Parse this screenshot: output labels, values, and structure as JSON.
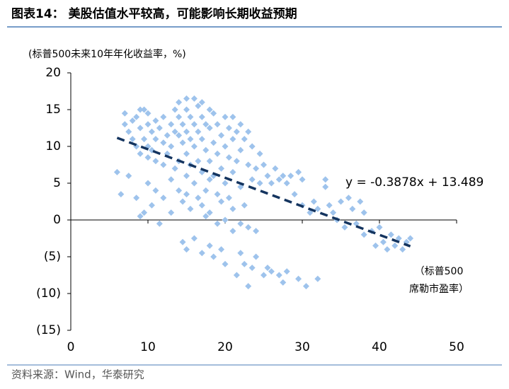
{
  "chart_data": {
    "type": "scatter",
    "title": "图表14：  美股估值水平较高，可能影响长期收益预期",
    "y_label": "(标普500未来10年年化收益率，%)",
    "x_label": [
      "（标普500",
      "席勒市盈率）"
    ],
    "source": "资料来源：Wind，华泰研究",
    "annotation": "y = -0.3878x + 13.489",
    "trendline": {
      "slope": -0.3878,
      "intercept": 13.489,
      "x_range": [
        6,
        44
      ],
      "color": "#14345f"
    },
    "color": "#9ec3ec",
    "xlim": [
      0,
      50
    ],
    "ylim": [
      -15,
      20
    ],
    "xticks": [
      0,
      10,
      20,
      30,
      40,
      50
    ],
    "yticks": [
      20,
      15,
      10,
      5,
      0,
      {
        "value": -5,
        "label": "(5)"
      },
      {
        "value": -10,
        "label": "(10)"
      },
      {
        "value": -15,
        "label": "(15)"
      }
    ],
    "x": [
      6,
      6.5,
      7,
      7,
      7.5,
      7.5,
      8,
      8,
      8.5,
      8.5,
      8.5,
      9,
      9,
      9,
      9,
      9.5,
      9.5,
      9.5,
      10,
      10,
      10,
      10,
      10,
      10.5,
      10.5,
      10.5,
      11,
      11,
      11,
      11,
      11.5,
      11.5,
      12,
      12,
      12,
      12,
      12.5,
      12.5,
      13,
      13,
      13,
      13,
      13.5,
      13.5,
      13.5,
      14,
      14,
      14,
      14,
      14,
      14.5,
      14.5,
      14.5,
      14.5,
      15,
      15,
      15,
      15,
      15,
      15,
      15,
      15.5,
      15.5,
      15.5,
      15.5,
      16,
      16,
      16,
      16,
      16,
      16.5,
      16.5,
      16.5,
      16.5,
      17,
      17,
      17,
      17,
      17,
      17,
      17.5,
      17.5,
      17.5,
      17.5,
      18,
      18,
      18,
      18,
      18,
      18,
      18.5,
      18.5,
      18.5,
      18.5,
      19,
      19,
      19,
      19,
      19.5,
      19.5,
      19.5,
      19.5,
      20,
      20,
      20,
      20,
      20,
      20.5,
      20.5,
      20.5,
      21,
      21,
      21,
      21,
      21,
      21.5,
      21.5,
      21.5,
      22,
      22,
      22,
      22,
      22,
      22.5,
      22.5,
      22.5,
      23,
      23,
      23,
      23,
      23.5,
      23.5,
      23.5,
      24,
      24,
      24,
      24.5,
      24.5,
      25,
      25,
      25.5,
      25.5,
      26,
      26,
      26.5,
      27,
      27,
      27.5,
      27.5,
      28,
      28,
      28.5,
      29,
      29.5,
      29.5,
      30,
      30,
      30.5,
      31,
      31.5,
      32,
      32,
      33,
      33,
      33.5,
      34,
      34.5,
      35,
      35.5,
      36,
      36.5,
      37,
      37.5,
      38,
      38,
      39,
      39.5,
      40,
      40.5,
      41,
      41.5,
      42,
      42.5,
      43,
      43.5,
      44
    ],
    "y": [
      6.5,
      3.5,
      14.5,
      13,
      12,
      6,
      13.5,
      11,
      14,
      10,
      3,
      15,
      12.5,
      9,
      0.5,
      15,
      11,
      1,
      14.5,
      13,
      10,
      8.5,
      5,
      12,
      9.5,
      2,
      13.5,
      11,
      8,
      4,
      12.5,
      -0.5,
      14,
      10.5,
      7.5,
      3,
      11.5,
      9,
      13,
      10,
      5.5,
      1,
      15,
      12,
      7,
      16,
      14,
      11.5,
      8,
      4,
      13,
      10.5,
      2.5,
      -3,
      16.5,
      15,
      12,
      9,
      6,
      3.5,
      -4,
      14,
      11,
      7.5,
      1.5,
      16.5,
      13,
      10,
      5,
      -2.5,
      15.5,
      12,
      8,
      3,
      16,
      14,
      11,
      6.5,
      2,
      -4.5,
      13,
      9.5,
      4,
      0.5,
      15,
      12.5,
      8,
      5.5,
      1,
      -3.5,
      14.5,
      10.5,
      6,
      -5,
      13,
      9,
      3.5,
      -0.5,
      11.5,
      7,
      2.5,
      -4,
      14,
      10,
      5,
      0,
      -6,
      12.5,
      8.5,
      3,
      14,
      11,
      6.5,
      1.5,
      -1.5,
      12,
      8,
      -7.5,
      13,
      9.5,
      4.5,
      -0.5,
      -4.5,
      11,
      2,
      -6,
      12,
      7.5,
      -1,
      -9,
      10,
      5.5,
      -6.5,
      7,
      -1.5,
      -5,
      9,
      5,
      7.5,
      -7.5,
      6,
      -6.5,
      5,
      -7,
      7,
      5.5,
      -7.5,
      6,
      -8.5,
      5,
      -7,
      6,
      3.5,
      6.5,
      -8,
      5.5,
      2,
      -9,
      1,
      2.5,
      1.5,
      -8,
      4.5,
      5.5,
      2,
      1,
      0,
      2.5,
      -1,
      3,
      1.5,
      -0.5,
      2.5,
      1,
      -2,
      -1.5,
      -3.5,
      -1,
      -3,
      -4,
      -2,
      -3.5,
      -2.5,
      -4,
      -3,
      -2.5
    ]
  }
}
